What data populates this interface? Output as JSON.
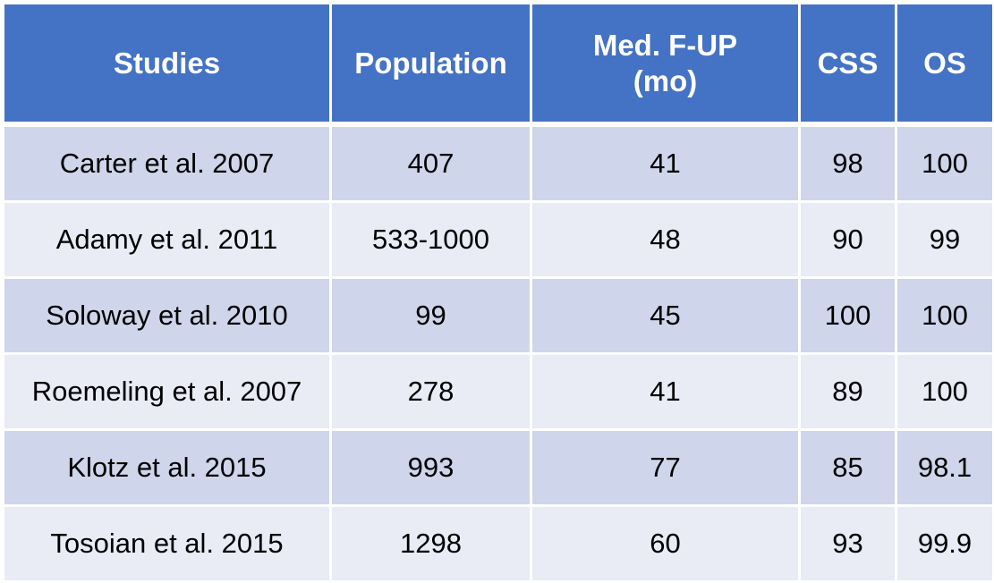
{
  "colors": {
    "header_bg": "#4472c4",
    "row_odd_bg": "#cfd5ea",
    "row_even_bg": "#e9ebf5",
    "header_text": "#ffffff",
    "body_text": "#000000"
  },
  "table": {
    "headers": [
      "Studies",
      "Population",
      "Med. F-UP\n(mo)",
      "CSS",
      "OS"
    ],
    "rows": [
      [
        "Carter et al. 2007",
        "407",
        "41",
        "98",
        "100"
      ],
      [
        "Adamy et al. 2011",
        "533-1000",
        "48",
        "90",
        "99"
      ],
      [
        "Soloway et al. 2010",
        "99",
        "45",
        "100",
        "100"
      ],
      [
        "Roemeling et al. 2007",
        "278",
        "41",
        "89",
        "100"
      ],
      [
        "Klotz et al. 2015",
        "993",
        "77",
        "85",
        "98.1"
      ],
      [
        "Tosoian et al. 2015",
        "1298",
        "60",
        "93",
        "99.9"
      ]
    ]
  }
}
